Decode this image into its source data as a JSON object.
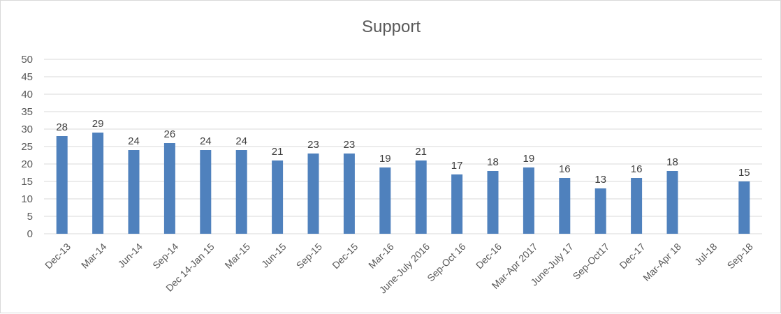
{
  "chart_data": {
    "type": "bar",
    "title": "Support",
    "xlabel": "",
    "ylabel": "",
    "ylim": [
      0,
      50
    ],
    "yticks": [
      0,
      5,
      10,
      15,
      20,
      25,
      30,
      35,
      40,
      45,
      50
    ],
    "grid": true,
    "bar_color": "#4f81bd",
    "categories": [
      "Dec-13",
      "Mar-14",
      "Jun-14",
      "Sep-14",
      "Dec 14-Jan 15",
      "Mar-15",
      "Jun-15",
      "Sep-15",
      "Dec-15",
      "Mar-16",
      "June-July 2016",
      "Sep-Oct 16",
      "Dec-16",
      "Mar-Apr 2017",
      "June-July 17",
      "Sep-Oct17",
      "Dec-17",
      "Mar-Apr 18",
      "Jul-18",
      "Sep-18"
    ],
    "values": [
      28,
      29,
      24,
      26,
      24,
      24,
      21,
      23,
      23,
      19,
      21,
      17,
      18,
      19,
      16,
      13,
      16,
      18,
      null,
      15
    ]
  }
}
